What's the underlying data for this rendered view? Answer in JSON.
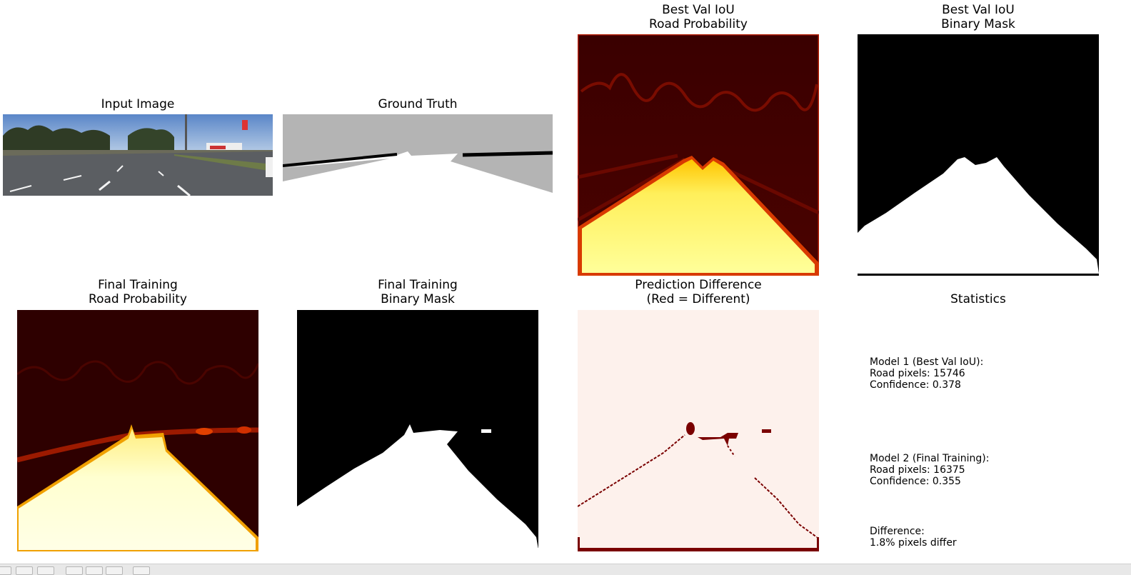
{
  "figure": {
    "panels": [
      {
        "id": "input-image",
        "title": "Input Image"
      },
      {
        "id": "ground-truth",
        "title": "Ground Truth"
      },
      {
        "id": "best-val-prob",
        "title": "Best Val IoU\nRoad Probability"
      },
      {
        "id": "best-val-mask",
        "title": "Best Val IoU\nBinary Mask"
      },
      {
        "id": "final-prob",
        "title": "Final Training\nRoad Probability"
      },
      {
        "id": "final-mask",
        "title": "Final Training\nBinary Mask"
      },
      {
        "id": "pred-diff",
        "title": "Prediction Difference\n(Red = Different)"
      },
      {
        "id": "statistics",
        "title": "Statistics"
      }
    ]
  },
  "statistics": {
    "model1": "Model 1 (Best Val IoU):\nRoad pixels: 15746\nConfidence: 0.378",
    "model2": "Model 2 (Final Training):\nRoad pixels: 16375\nConfidence: 0.355",
    "difference": "Difference:\n1.8% pixels differ"
  },
  "colors": {
    "heat_dark": "#2a0000",
    "heat_mid": "#b01b00",
    "heat_bright": "#ffff8c",
    "road_gt": "#b4b4b4",
    "diff_bg": "#fdf1ec",
    "diff_mark": "#7a0000"
  },
  "toolbar": {
    "status": "",
    "icons": [
      "home-icon",
      "back-icon",
      "forward-icon",
      "pan-icon",
      "zoom-icon",
      "configure-icon",
      "save-icon"
    ]
  }
}
